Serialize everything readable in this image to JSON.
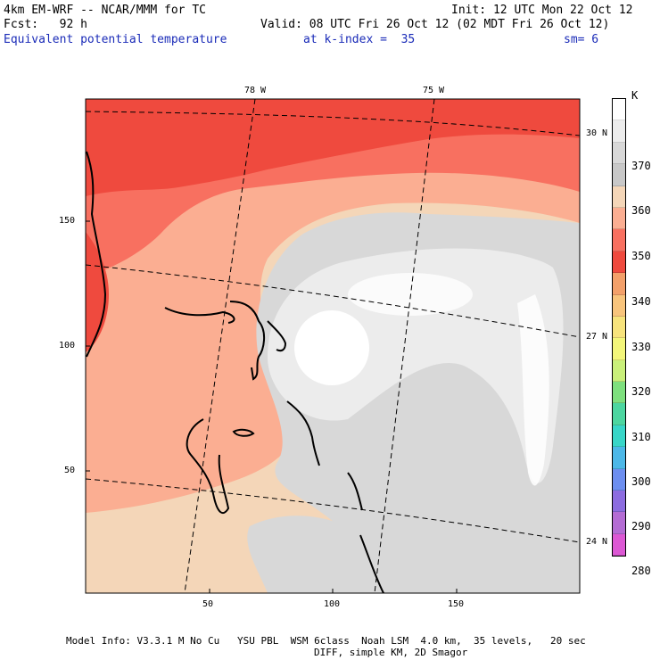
{
  "header": {
    "model": "4km EM-WRF -- NCAR/MMM for TC",
    "init": "Init: 12 UTC Mon 22 Oct 12",
    "fcst": "Fcst:   92 h",
    "valid": "Valid: 08 UTC Fri 26 Oct 12 (02 MDT Fri 26 Oct 12)",
    "field": "Equivalent potential temperature",
    "kindex": "at k-index =  35",
    "sm": "sm= 6"
  },
  "map": {
    "lon_labels": [
      "78 W",
      "75 W"
    ],
    "lat_labels": [
      "30 N",
      "27 N",
      "24 N"
    ],
    "x_ticks": [
      "50",
      "100",
      "150"
    ],
    "y_ticks": [
      "150",
      "100",
      "50"
    ]
  },
  "legend": {
    "unit": "K",
    "labels": [
      "370",
      "360",
      "350",
      "340",
      "330",
      "320",
      "310",
      "300",
      "290",
      "280"
    ],
    "colors": [
      "#ffffff",
      "#ececec",
      "#d8d8d8",
      "#c8c8c8",
      "#f4d6b8",
      "#fbae92",
      "#f87060",
      "#ef4a3e",
      "#f3a06a",
      "#f8c47c",
      "#f7e37c",
      "#f3f67a",
      "#c9f07a",
      "#7ee07e",
      "#4cd6a0",
      "#38d6c8",
      "#4cb8e8",
      "#6c8ef0",
      "#8c6ce0",
      "#b46cd4",
      "#dc58d4"
    ]
  },
  "footer": {
    "line1": "Model Info: V3.3.1 M No Cu   YSU PBL  WSM 6class  Noah LSM  4.0 km,  35 levels,   20 sec",
    "line2": "DIFF, simple KM, 2D Smagor"
  }
}
